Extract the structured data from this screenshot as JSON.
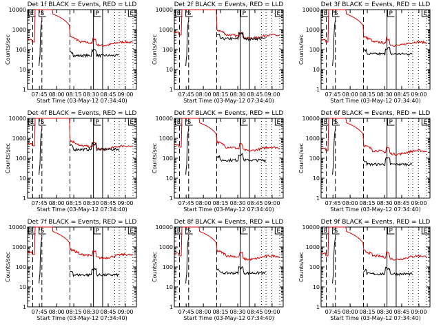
{
  "chart_data": {
    "type": "line",
    "xlabel": "Start Time (03-May-12 07:34:40)",
    "ylabel": "Counts/sec",
    "x_ticks": [
      "07:45",
      "08:00",
      "08:15",
      "08:30",
      "08:45",
      "09:00"
    ],
    "y_ticks": [
      "1",
      "10",
      "100",
      "1000",
      "10000"
    ],
    "ylim": [
      1,
      10000
    ],
    "y_scale": "log",
    "grid": false,
    "marker_labels": [
      "E",
      "S",
      "P",
      "E"
    ],
    "series_colors": {
      "events": "#000000",
      "lld": "#d40000"
    },
    "panels": [
      {
        "title": "Det 1f BLACK = Events, RED = LLD",
        "events_level": 50,
        "lld_level": 200,
        "saturate": false
      },
      {
        "title": "Det 2f BLACK = Events, RED = LLD",
        "events_level": 350,
        "lld_level": 450,
        "saturate": true
      },
      {
        "title": "Det 3f BLACK = Events, RED = LLD",
        "events_level": 60,
        "lld_level": 200,
        "saturate": false
      },
      {
        "title": "Det 4f BLACK = Events, RED = LLD",
        "events_level": 280,
        "lld_level": 350,
        "saturate": true
      },
      {
        "title": "Det 5f BLACK = Events, RED = LLD",
        "events_level": 80,
        "lld_level": 300,
        "saturate": false
      },
      {
        "title": "Det 6f BLACK = Events, RED = LLD",
        "events_level": 50,
        "lld_level": 200,
        "saturate": false
      },
      {
        "title": "Det 7f BLACK = Events, RED = LLD",
        "events_level": 40,
        "lld_level": 350,
        "saturate": false
      },
      {
        "title": "Det 8f BLACK = Events, RED = LLD",
        "events_level": 50,
        "lld_level": 300,
        "saturate": false
      },
      {
        "title": "Det 9f BLACK = Events, RED = LLD",
        "events_level": 45,
        "lld_level": 300,
        "saturate": false
      }
    ]
  }
}
